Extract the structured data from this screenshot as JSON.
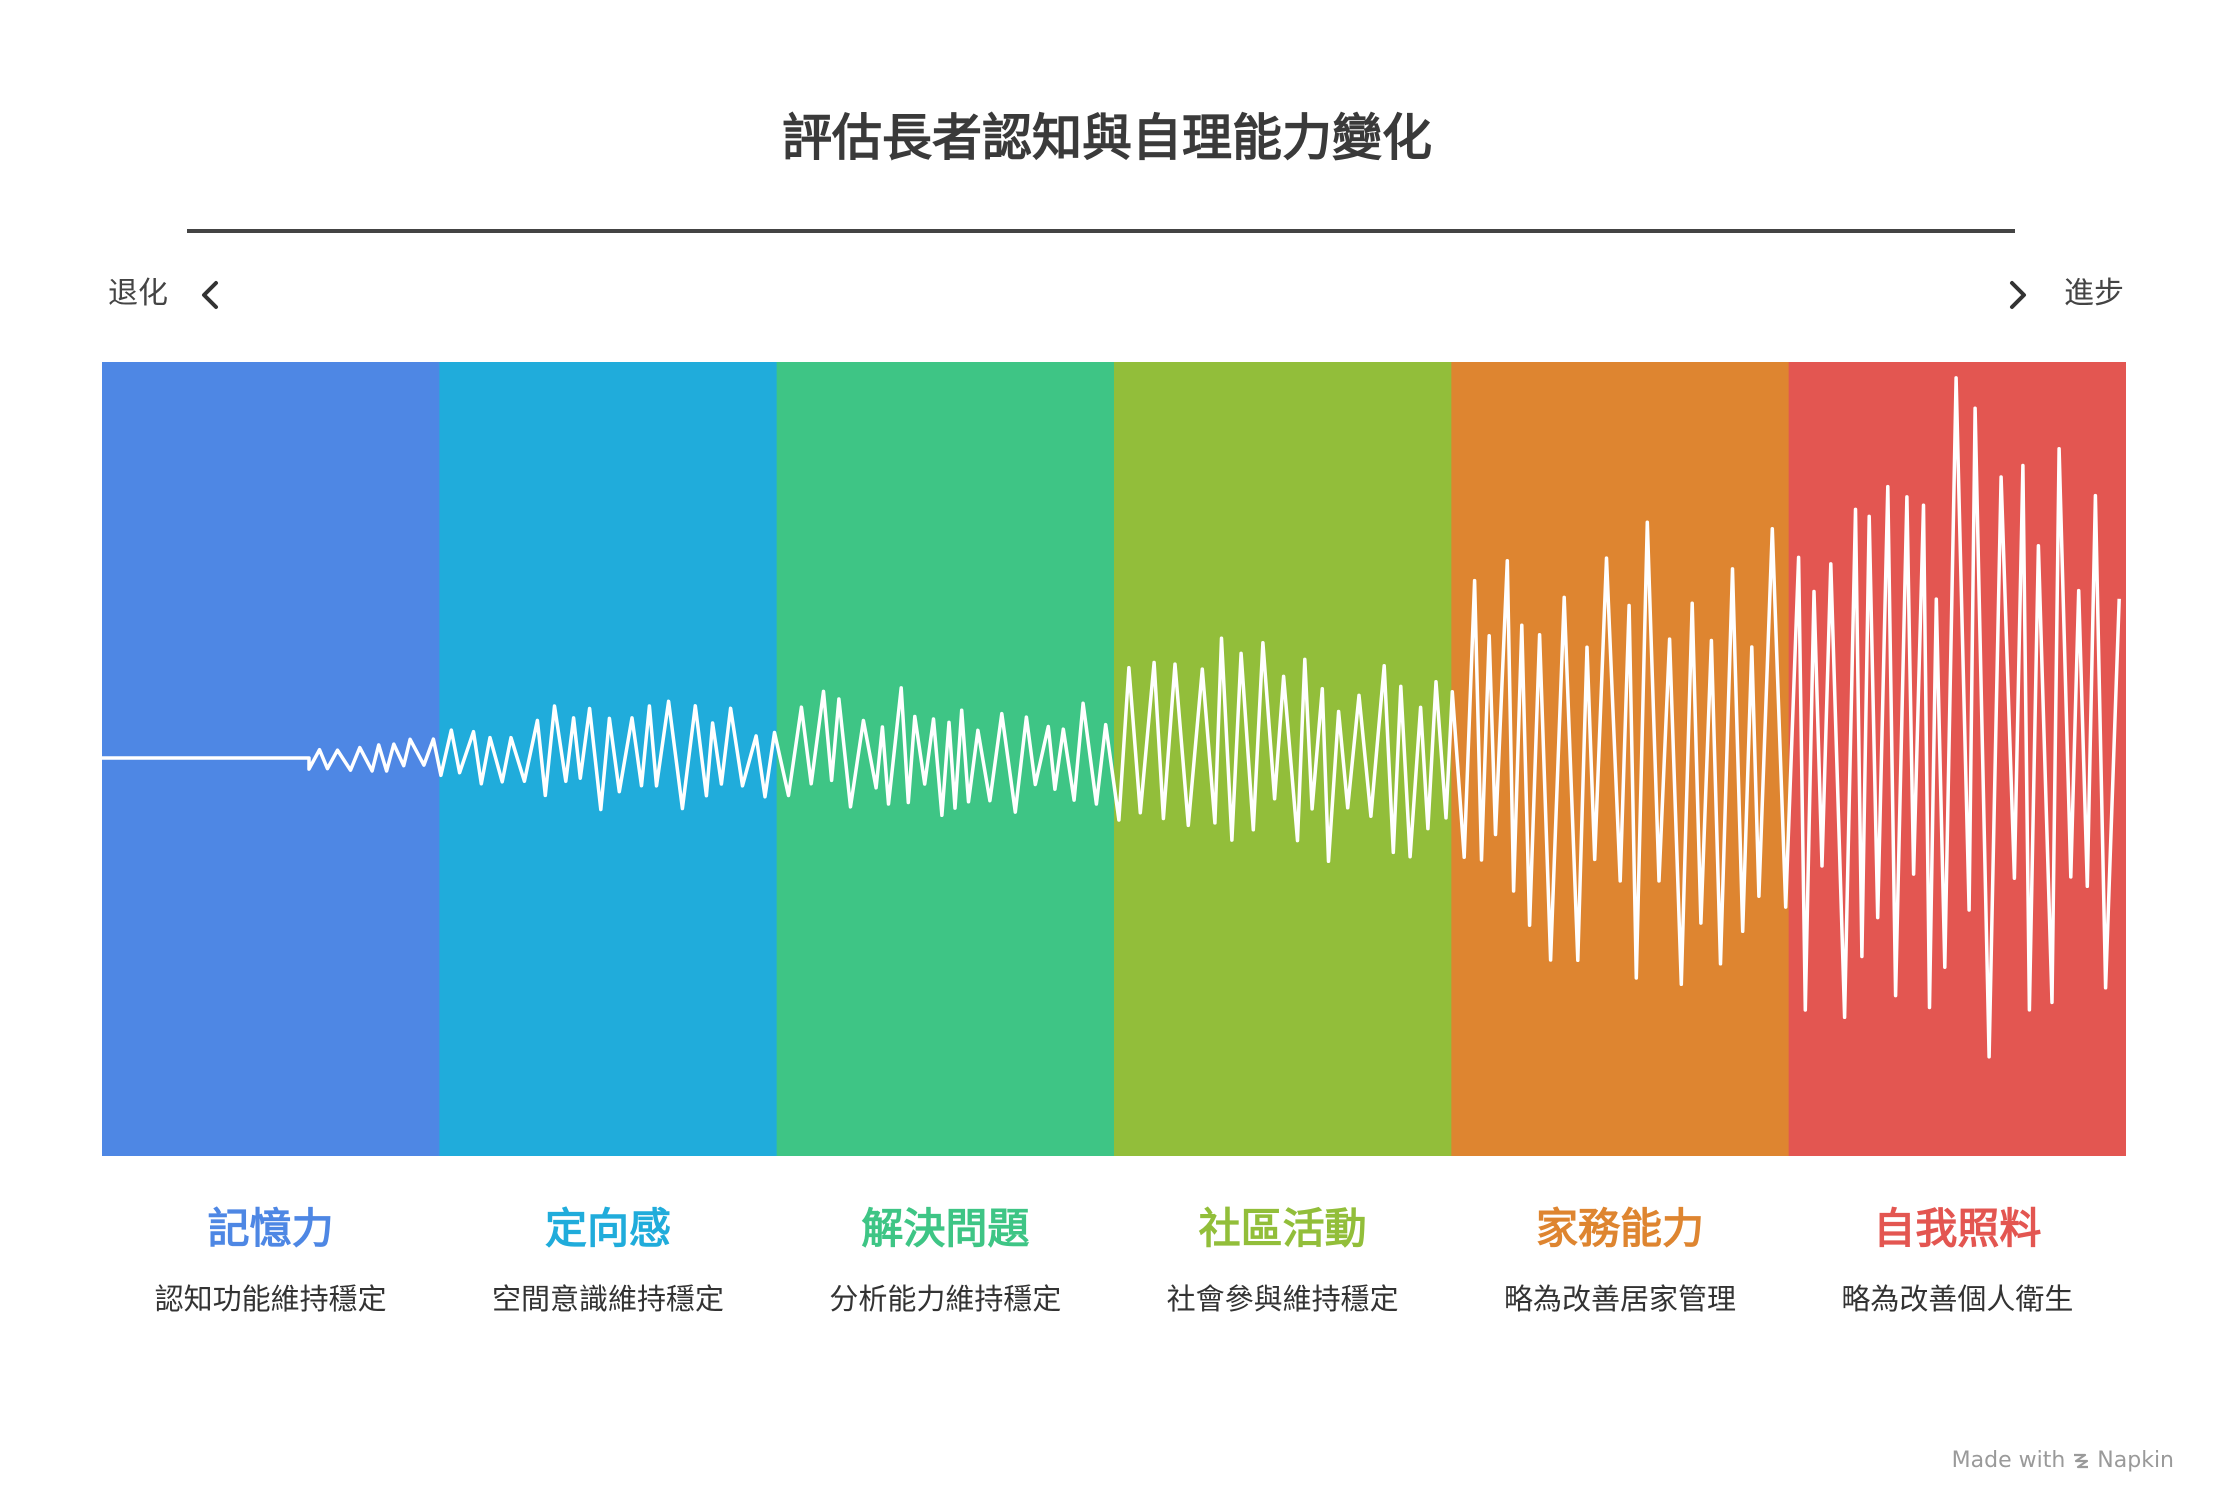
{
  "title": "評估長者認知與自理能力變化",
  "axis": {
    "left_label": "退化",
    "right_label": "進步",
    "left_icon": "chevron-left-icon",
    "right_icon": "chevron-right-icon"
  },
  "stages": [
    {
      "label": "記憶力",
      "desc": "認知功能維持穩定",
      "color": "#4E87E4",
      "amplitude": 0.05
    },
    {
      "label": "定向感",
      "desc": "空間意識維持穩定",
      "color": "#20ACDB",
      "amplitude": 0.16
    },
    {
      "label": "解決問題",
      "desc": "分析能力維持穩定",
      "color": "#3EC585",
      "amplitude": 0.2
    },
    {
      "label": "社區活動",
      "desc": "社會參與維持穩定",
      "color": "#92BE3A",
      "amplitude": 0.32
    },
    {
      "label": "家務能力",
      "desc": "略為改善居家管理",
      "color": "#DE8530",
      "amplitude": 0.7
    },
    {
      "label": "自我照料",
      "desc": "略為改善個人衛生",
      "color": "#E35651",
      "amplitude": 1.0
    }
  ],
  "footer": {
    "text": "Made with",
    "brand": "Napkin",
    "icon": "napkin-logo-icon"
  }
}
